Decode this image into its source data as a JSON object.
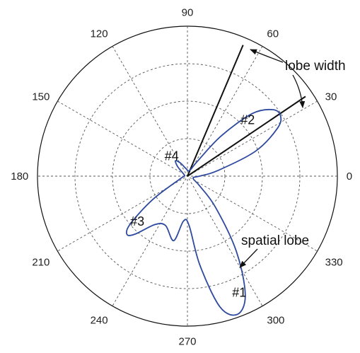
{
  "chart_data": {
    "type": "polar",
    "theta_unit": "degrees",
    "angular_ticks": [
      "0",
      "30",
      "60",
      "90",
      "120",
      "150",
      "180",
      "210",
      "240",
      "270",
      "300",
      "330"
    ],
    "radial_rings": 4,
    "grid": true,
    "series": [
      {
        "color": "#2e4a9e",
        "points": [
          [
            0,
            0.08
          ],
          [
            10,
            0.2
          ],
          [
            20,
            0.48
          ],
          [
            28,
            0.68
          ],
          [
            33,
            0.74
          ],
          [
            38,
            0.72
          ],
          [
            44,
            0.6
          ],
          [
            50,
            0.35
          ],
          [
            56,
            0.12
          ],
          [
            70,
            0.04
          ],
          [
            100,
            0.05
          ],
          [
            118,
            0.1
          ],
          [
            128,
            0.13
          ],
          [
            136,
            0.09
          ],
          [
            150,
            0.03
          ],
          [
            180,
            0.02
          ],
          [
            200,
            0.05
          ],
          [
            214,
            0.28
          ],
          [
            220,
            0.5
          ],
          [
            224,
            0.56
          ],
          [
            228,
            0.52
          ],
          [
            236,
            0.39
          ],
          [
            246,
            0.36
          ],
          [
            258,
            0.44
          ],
          [
            265,
            0.3
          ],
          [
            272,
            0.33
          ],
          [
            278,
            0.6
          ],
          [
            284,
            0.9
          ],
          [
            290,
            0.98
          ],
          [
            296,
            0.88
          ],
          [
            303,
            0.6
          ],
          [
            312,
            0.28
          ],
          [
            322,
            0.1
          ],
          [
            340,
            0.04
          ],
          [
            360,
            0.08
          ]
        ]
      }
    ],
    "reference_lines": [
      {
        "theta": 34,
        "r": 0.95,
        "style": "solid",
        "color": "#111111"
      },
      {
        "theta": 67,
        "r": 0.95,
        "style": "solid",
        "color": "#111111"
      }
    ],
    "lobe_labels": [
      {
        "text": "#1",
        "theta": 294,
        "r": 0.85
      },
      {
        "text": "#2",
        "theta": 43,
        "r": 0.55
      },
      {
        "text": "#3",
        "theta": 222,
        "r": 0.45
      },
      {
        "text": "#4",
        "theta": 128,
        "r": 0.17
      }
    ],
    "annotations": [
      {
        "text": "lobe width"
      },
      {
        "text": "spatial lobe"
      }
    ]
  }
}
